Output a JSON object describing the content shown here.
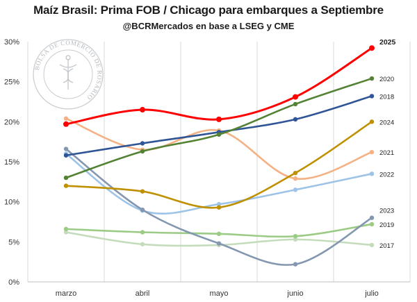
{
  "title": "Maíz Brasil: Prima FOB / Chicago para embarques a Septiembre",
  "subtitle": "@BCRMercados en base a LSEG y CME",
  "watermark": {
    "text": "BOLSA DE COMERCIO DE ROSARIO",
    "color": "#9aa0a6"
  },
  "chart_data": {
    "type": "line",
    "categories": [
      "marzo",
      "abril",
      "mayo",
      "junio",
      "julio"
    ],
    "ylim": [
      0,
      30
    ],
    "yticks": [
      0,
      5,
      10,
      15,
      20,
      25,
      30
    ],
    "ytick_labels": [
      "0%",
      "5%",
      "10%",
      "15%",
      "20%",
      "25%",
      "30%"
    ],
    "grid": "vertical",
    "series": [
      {
        "name": "2017",
        "color": "#c5dcbc",
        "values": [
          6.2,
          4.7,
          4.6,
          5.3,
          4.6
        ]
      },
      {
        "name": "2019",
        "color": "#9ccb86",
        "values": [
          6.6,
          6.2,
          6.0,
          5.7,
          7.2
        ]
      },
      {
        "name": "2022",
        "color": "#9dc3e6",
        "values": [
          16.0,
          8.9,
          9.7,
          11.5,
          13.5
        ]
      },
      {
        "name": "2023",
        "color": "#8497b0",
        "values": [
          16.6,
          9.0,
          4.8,
          2.2,
          8.0
        ]
      },
      {
        "name": "2021",
        "color": "#f4b183",
        "values": [
          20.4,
          16.5,
          18.9,
          12.9,
          16.2
        ]
      },
      {
        "name": "2024",
        "color": "#bf9000",
        "values": [
          12.0,
          11.3,
          9.3,
          13.6,
          20.0
        ]
      },
      {
        "name": "2018",
        "color": "#2f5597",
        "values": [
          15.8,
          17.3,
          18.7,
          20.3,
          23.2
        ]
      },
      {
        "name": "2020",
        "color": "#548235",
        "values": [
          13.0,
          16.3,
          18.4,
          22.2,
          25.4
        ]
      },
      {
        "name": "2025",
        "color": "#ff0000",
        "values": [
          19.7,
          21.5,
          20.3,
          23.1,
          29.2
        ]
      }
    ]
  }
}
